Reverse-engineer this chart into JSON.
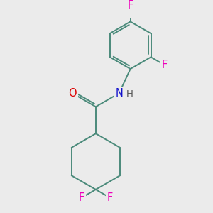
{
  "background_color": "#ebebeb",
  "bond_color": "#4a8a7a",
  "atom_colors": {
    "F": "#ee00bb",
    "O": "#dd0000",
    "N": "#1111cc",
    "H": "#555555"
  },
  "font_size": 10.5,
  "fig_size": [
    3.0,
    3.0
  ],
  "dpi": 100
}
